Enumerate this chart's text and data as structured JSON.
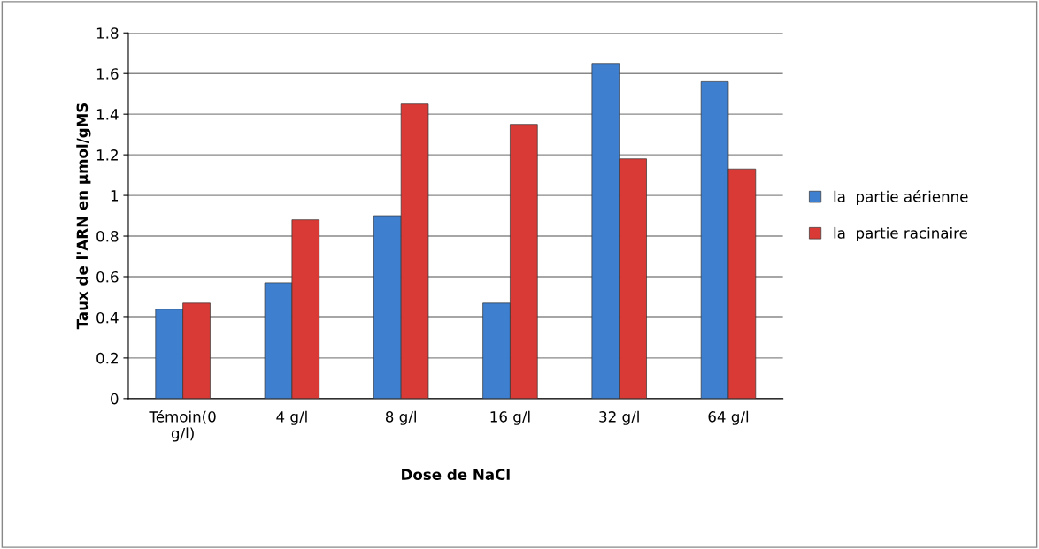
{
  "chart_data": {
    "type": "bar",
    "xlabel": "Dose de NaCl",
    "ylabel": "Taux de l'ARN en µmol/gMS",
    "categories": [
      "Témoin(0 g/l)",
      "4 g/l",
      "8 g/l",
      "16 g/l",
      "32 g/l",
      "64 g/l"
    ],
    "series": [
      {
        "name": "la  partie aérienne",
        "color": "#3f7fd0",
        "values": [
          0.44,
          0.57,
          0.9,
          0.47,
          1.65,
          1.56
        ]
      },
      {
        "name": "la  partie racinaire",
        "color": "#d93a35",
        "values": [
          0.47,
          0.88,
          1.45,
          1.35,
          1.18,
          1.13
        ]
      }
    ],
    "ylim": [
      0,
      1.8
    ],
    "yticks": [
      0,
      0.2,
      0.4,
      0.6,
      0.8,
      1,
      1.2,
      1.4,
      1.6,
      1.8
    ],
    "grid": "y",
    "legend": "right"
  }
}
